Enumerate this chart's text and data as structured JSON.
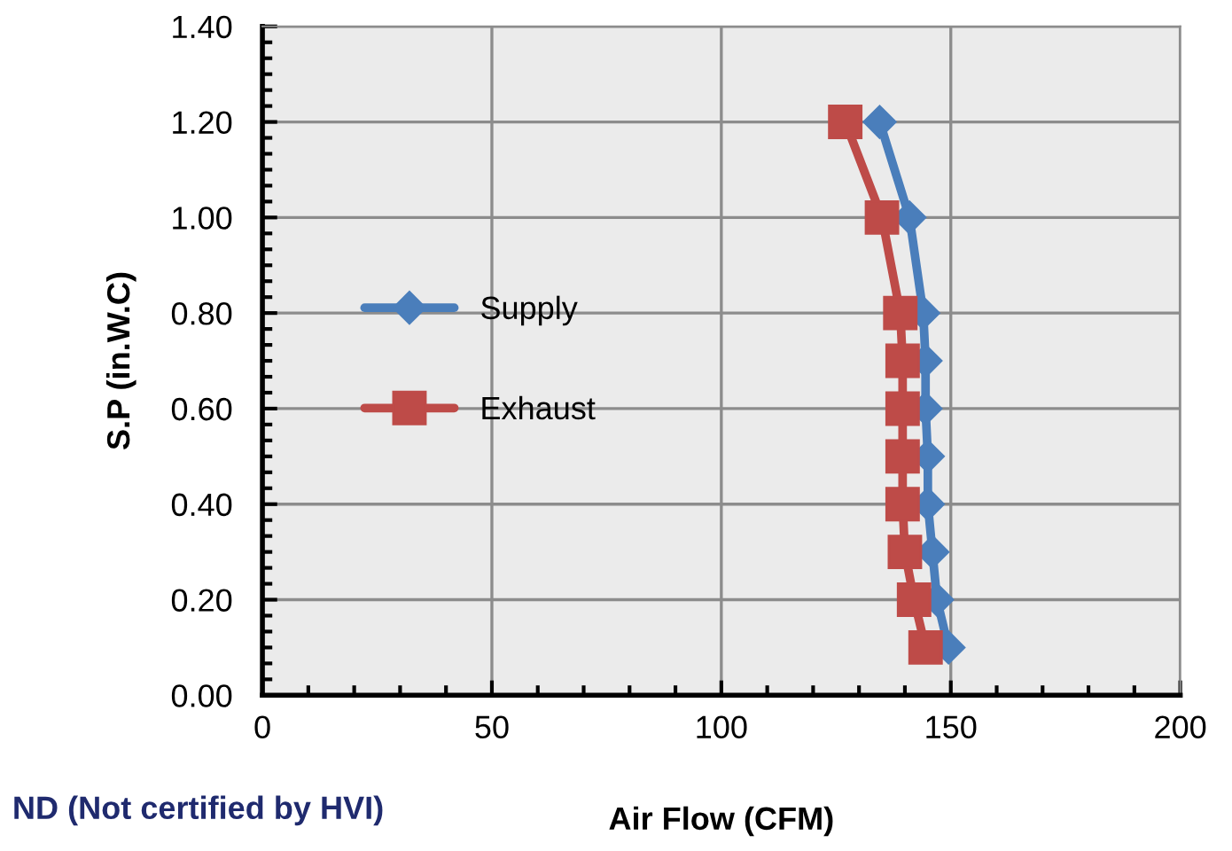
{
  "chart_data": {
    "type": "line",
    "xlabel": "Air Flow (CFM)",
    "ylabel": "S.P (in.W.C)",
    "annotations": [
      "ND (Not certified by HVI)"
    ],
    "series": [
      {
        "name": "Supply",
        "color": "#4a7ebb",
        "marker": "diamond",
        "x": [
          134.5,
          141,
          144,
          144.5,
          144.5,
          145,
          145,
          146,
          147,
          149.5
        ],
        "values": [
          1.2,
          1.0,
          0.8,
          0.7,
          0.6,
          0.5,
          0.4,
          0.3,
          0.2,
          0.1
        ]
      },
      {
        "name": "Exhaust",
        "color": "#be4b48",
        "marker": "square",
        "x": [
          127,
          135,
          139,
          139.5,
          139.5,
          139.5,
          139.5,
          140,
          142,
          144.5
        ],
        "values": [
          1.2,
          1.0,
          0.8,
          0.7,
          0.6,
          0.5,
          0.4,
          0.3,
          0.2,
          0.1
        ]
      }
    ],
    "xlim": [
      0,
      200
    ],
    "xticks": [
      0,
      50,
      100,
      150,
      200
    ],
    "ylim": [
      0,
      1.4
    ],
    "yticks": [
      {
        "value": 0,
        "label": "0.00"
      },
      {
        "value": 0.2,
        "label": "0.20"
      },
      {
        "value": 0.4,
        "label": "0.40"
      },
      {
        "value": 0.6,
        "label": "0.60"
      },
      {
        "value": 0.8,
        "label": "0.80"
      },
      {
        "value": 1.0,
        "label": "1.00"
      },
      {
        "value": 1.2,
        "label": "1.20"
      },
      {
        "value": 1.4,
        "label": "1.40"
      }
    ],
    "grid": true,
    "legend": "left",
    "line_style": "solid"
  }
}
